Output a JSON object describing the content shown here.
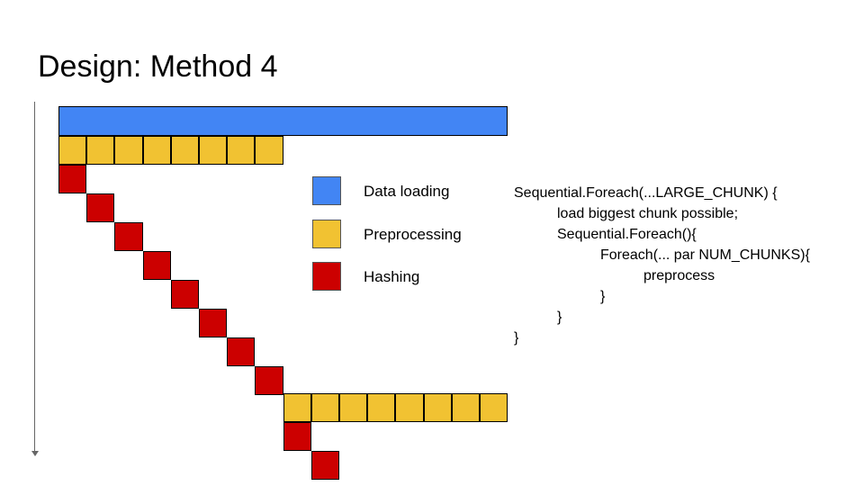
{
  "title": "Design: Method 4",
  "colors": {
    "data_loading": "#4285f4",
    "preprocessing": "#f1c232",
    "hashing": "#cc0000",
    "border": "#000000",
    "axis": "#666666"
  },
  "legend": [
    {
      "label": "Data loading",
      "color": "#4285f4"
    },
    {
      "label": "Preprocessing",
      "color": "#f1c232"
    },
    {
      "label": "Hashing",
      "color": "#cc0000"
    }
  ],
  "timeline": {
    "load_chunks": 1,
    "preprocess_chunks": 8,
    "hashing_steps_first": 8,
    "preprocess_chunks_second": 8,
    "hashing_steps_second_visible": 2
  },
  "code": [
    {
      "indent": 0,
      "text": "Sequential.Foreach(...LARGE_CHUNK) {"
    },
    {
      "indent": 1,
      "text": "load biggest chunk possible;"
    },
    {
      "indent": 1,
      "text": "Sequential.Foreach(){"
    },
    {
      "indent": 2,
      "text": "Foreach(... par NUM_CHUNKS){"
    },
    {
      "indent": 3,
      "text": "preprocess"
    },
    {
      "indent": 2,
      "text": "}"
    },
    {
      "indent": 1,
      "text": "}"
    },
    {
      "indent": 0,
      "text": "}"
    }
  ]
}
